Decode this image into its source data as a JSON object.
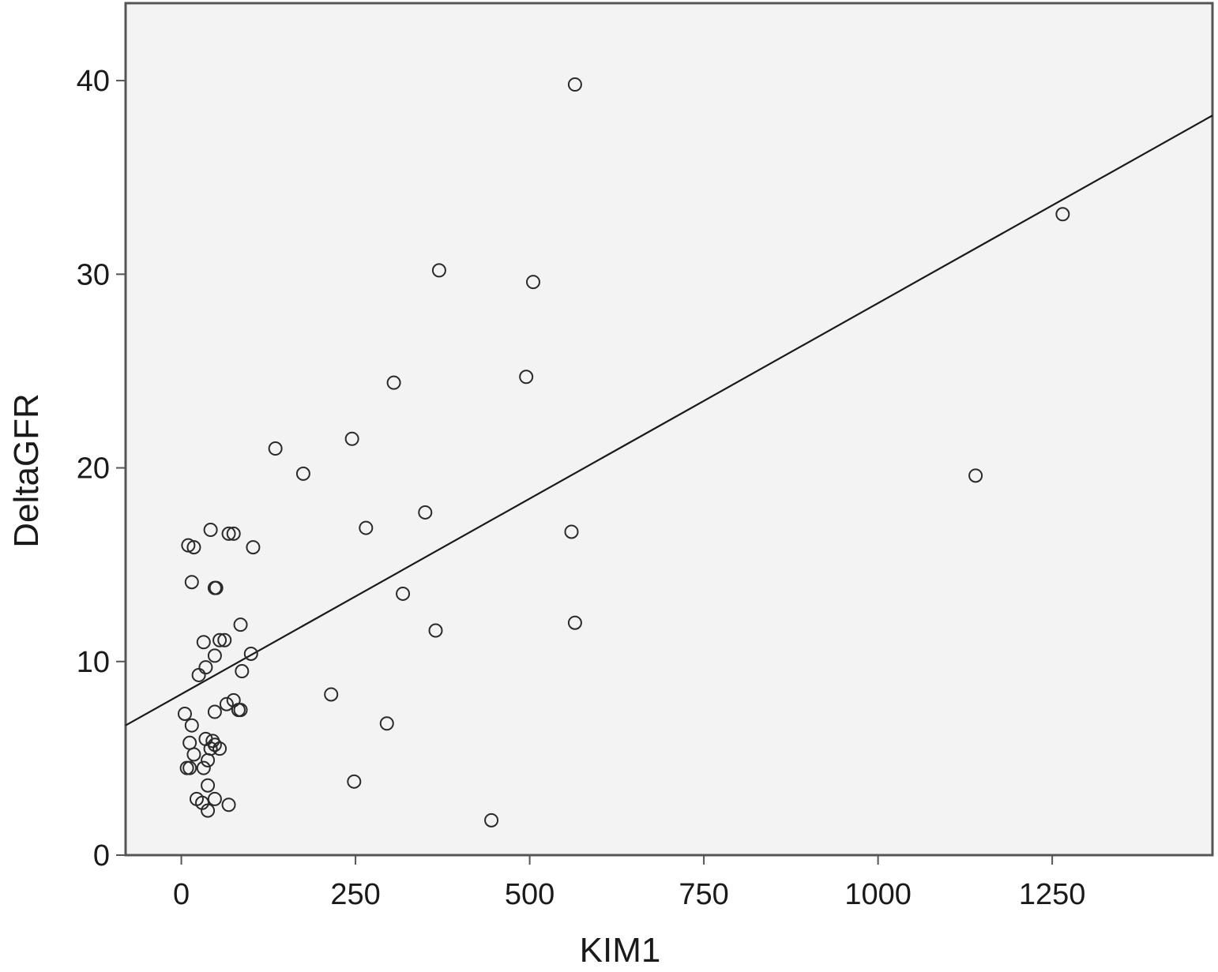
{
  "chart_data": {
    "type": "scatter",
    "title": "",
    "xlabel": "KIM1",
    "ylabel": "DeltaGFR",
    "xlim": [
      -80,
      1480
    ],
    "ylim": [
      0,
      44
    ],
    "xticks": [
      0,
      250,
      500,
      750,
      1000,
      1250
    ],
    "yticks": [
      0,
      10,
      20,
      30,
      40
    ],
    "grid": false,
    "legend": "none",
    "colors": {
      "plot_background": "#f2f3f2",
      "marker_stroke": "#2a2a2a",
      "line": "#1a1a1a"
    },
    "fit_line": {
      "x": [
        -80,
        1480
      ],
      "y": [
        6.7,
        38.2
      ]
    },
    "series": [
      {
        "points": [
          [
            565,
            39.8
          ],
          [
            1265,
            33.1
          ],
          [
            370,
            30.2
          ],
          [
            505,
            29.6
          ],
          [
            305,
            24.4
          ],
          [
            495,
            24.7
          ],
          [
            135,
            21.0
          ],
          [
            245,
            21.5
          ],
          [
            175,
            19.7
          ],
          [
            1140,
            19.6
          ],
          [
            350,
            17.7
          ],
          [
            265,
            16.9
          ],
          [
            560,
            16.7
          ],
          [
            42,
            16.8
          ],
          [
            68,
            16.6
          ],
          [
            75,
            16.6
          ],
          [
            103,
            15.9
          ],
          [
            10,
            16.0
          ],
          [
            18,
            15.9
          ],
          [
            15,
            14.1
          ],
          [
            48,
            13.8
          ],
          [
            50,
            13.8
          ],
          [
            318,
            13.5
          ],
          [
            365,
            11.6
          ],
          [
            565,
            12.0
          ],
          [
            85,
            11.9
          ],
          [
            32,
            11.0
          ],
          [
            55,
            11.1
          ],
          [
            62,
            11.1
          ],
          [
            48,
            10.3
          ],
          [
            100,
            10.4
          ],
          [
            35,
            9.7
          ],
          [
            25,
            9.3
          ],
          [
            87,
            9.5
          ],
          [
            215,
            8.3
          ],
          [
            75,
            8.0
          ],
          [
            65,
            7.8
          ],
          [
            85,
            7.5
          ],
          [
            82,
            7.5
          ],
          [
            48,
            7.4
          ],
          [
            5,
            7.3
          ],
          [
            295,
            6.8
          ],
          [
            15,
            6.7
          ],
          [
            12,
            5.8
          ],
          [
            35,
            6.0
          ],
          [
            45,
            5.9
          ],
          [
            48,
            5.7
          ],
          [
            42,
            5.5
          ],
          [
            55,
            5.5
          ],
          [
            18,
            5.2
          ],
          [
            38,
            4.9
          ],
          [
            32,
            4.5
          ],
          [
            8,
            4.5
          ],
          [
            12,
            4.5
          ],
          [
            38,
            3.6
          ],
          [
            248,
            3.8
          ],
          [
            22,
            2.9
          ],
          [
            48,
            2.9
          ],
          [
            30,
            2.7
          ],
          [
            68,
            2.6
          ],
          [
            38,
            2.3
          ],
          [
            445,
            1.8
          ]
        ]
      }
    ]
  }
}
